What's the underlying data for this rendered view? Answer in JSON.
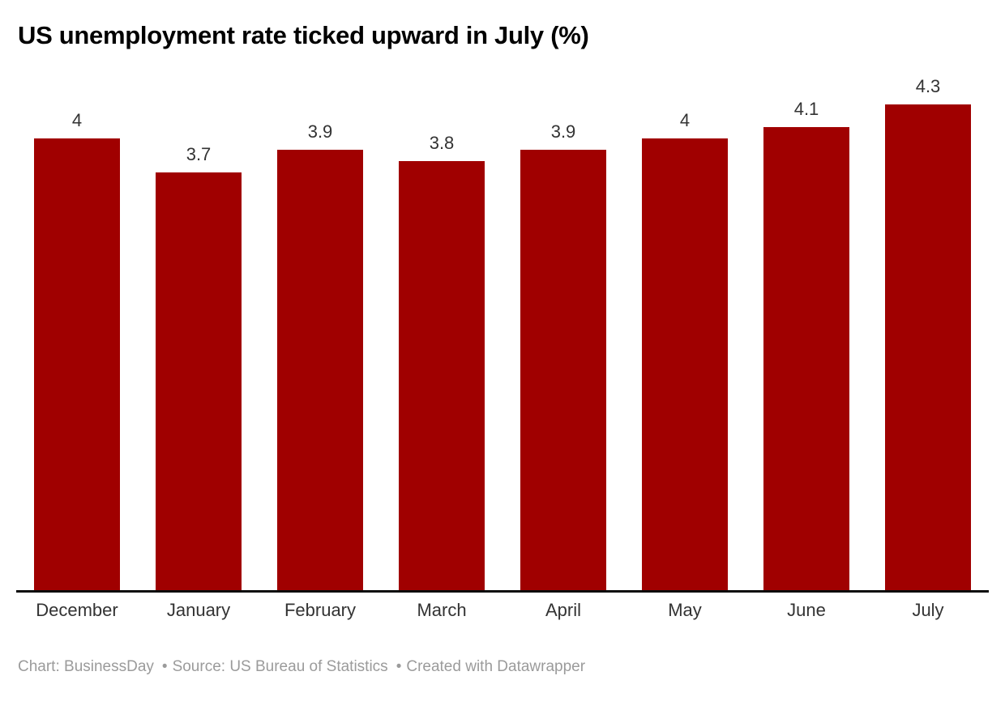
{
  "title": "US unemployment rate ticked upward in July (%)",
  "chart_data": {
    "type": "bar",
    "categories": [
      "December",
      "January",
      "February",
      "March",
      "April",
      "May",
      "June",
      "July"
    ],
    "values": [
      4,
      3.7,
      3.9,
      3.8,
      3.9,
      4,
      4.1,
      4.3
    ],
    "value_labels": [
      "4",
      "3.7",
      "3.9",
      "3.8",
      "3.9",
      "4",
      "4.1",
      "4.3"
    ],
    "title": "US unemployment rate ticked upward in July (%)",
    "xlabel": "",
    "ylabel": "",
    "ylim": [
      0,
      4.3
    ],
    "grid": false,
    "legend": false,
    "data_labels_position": "above-bars"
  },
  "footer": {
    "chart_credit": "Chart: BusinessDay",
    "separator": "•",
    "source_credit": "Source: US Bureau of Statistics",
    "created_credit": "Created with Datawrapper"
  },
  "colors": {
    "bar": "#a00000",
    "title": "#000000",
    "labels": "#333333",
    "axis": "#0c0c0c",
    "footer": "#9b9b9b",
    "background": "#ffffff"
  }
}
